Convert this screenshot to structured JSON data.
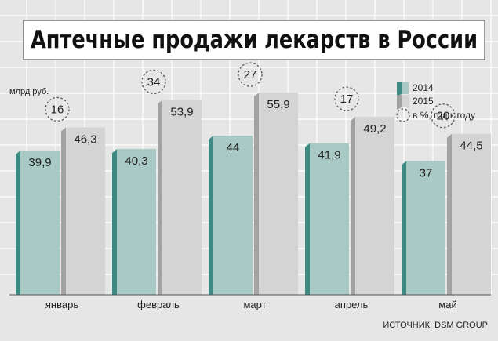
{
  "chart_data": {
    "type": "bar",
    "title": "Аптечные продажи лекарств в России",
    "ylabel": "млрд руб.",
    "categories": [
      "январь",
      "февраль",
      "март",
      "апрель",
      "май"
    ],
    "series": [
      {
        "name": "2014",
        "values": [
          39.9,
          40.3,
          44,
          41.9,
          37
        ],
        "labels": [
          "39,9",
          "40,3",
          "44",
          "41,9",
          "37"
        ]
      },
      {
        "name": "2015",
        "values": [
          46.3,
          53.9,
          55.9,
          49.2,
          44.5
        ],
        "labels": [
          "46,3",
          "53,9",
          "55,9",
          "49,2",
          "44,5"
        ]
      }
    ],
    "yoy_percent": {
      "name": "в %, год к году",
      "values": [
        16,
        34,
        27,
        17,
        20
      ]
    },
    "ylim": [
      0,
      62
    ],
    "grid": true,
    "legend": "top-right",
    "source": "ИСТОЧНИК: DSM GROUP"
  },
  "colors": {
    "series_2014_front": "#a8c9c4",
    "series_2014_side": "#3d8a82",
    "series_2015_front": "#d4d4d4",
    "series_2015_side": "#a2a2a2",
    "background": "#e6e6e6",
    "gridlines": "#ffffff"
  }
}
